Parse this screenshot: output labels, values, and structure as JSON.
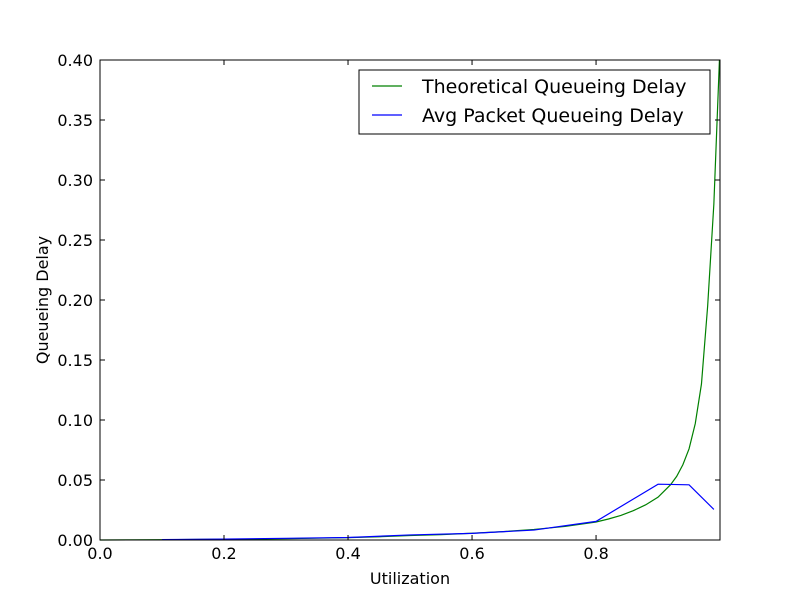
{
  "chart_data": {
    "type": "line",
    "xlabel": "Utilization",
    "ylabel": "Queueing Delay",
    "xlim": [
      0.0,
      0.9999
    ],
    "ylim": [
      0.0,
      0.4
    ],
    "xticks": [
      0.0,
      0.2,
      0.4,
      0.6,
      0.8
    ],
    "xtick_labels": [
      "0.0",
      "0.2",
      "0.4",
      "0.6",
      "0.8"
    ],
    "yticks": [
      0.0,
      0.05,
      0.1,
      0.15,
      0.2,
      0.25,
      0.3,
      0.35,
      0.4
    ],
    "ytick_labels": [
      "0.00",
      "0.05",
      "0.10",
      "0.15",
      "0.20",
      "0.25",
      "0.30",
      "0.35",
      "0.40"
    ],
    "grid": false,
    "legend_position": "top-right",
    "series": [
      {
        "name": "Theoretical Queueing Delay",
        "color": "#008000",
        "x": [
          0.0,
          0.05,
          0.1,
          0.15,
          0.2,
          0.25,
          0.3,
          0.35,
          0.4,
          0.45,
          0.5,
          0.55,
          0.6,
          0.65,
          0.7,
          0.75,
          0.8,
          0.82,
          0.84,
          0.86,
          0.88,
          0.9,
          0.92,
          0.93,
          0.94,
          0.95,
          0.96,
          0.97,
          0.98,
          0.99,
          0.999
        ],
        "y": [
          0.0,
          0.0001,
          0.0002,
          0.0004,
          0.0006,
          0.0008,
          0.0011,
          0.0015,
          0.002,
          0.0027,
          0.0037,
          0.0045,
          0.0056,
          0.007,
          0.0088,
          0.0113,
          0.015,
          0.0175,
          0.0205,
          0.0244,
          0.0293,
          0.0357,
          0.046,
          0.053,
          0.0627,
          0.076,
          0.097,
          0.13,
          0.195,
          0.28,
          0.4
        ]
      },
      {
        "name": "Avg Packet Queueing Delay",
        "color": "#0000ff",
        "x": [
          0.1,
          0.2,
          0.3,
          0.4,
          0.5,
          0.6,
          0.7,
          0.8,
          0.9,
          0.95,
          0.99
        ],
        "y": [
          0.0003,
          0.0008,
          0.0014,
          0.0021,
          0.0042,
          0.0055,
          0.0083,
          0.0155,
          0.0465,
          0.046,
          0.0255
        ]
      }
    ]
  }
}
